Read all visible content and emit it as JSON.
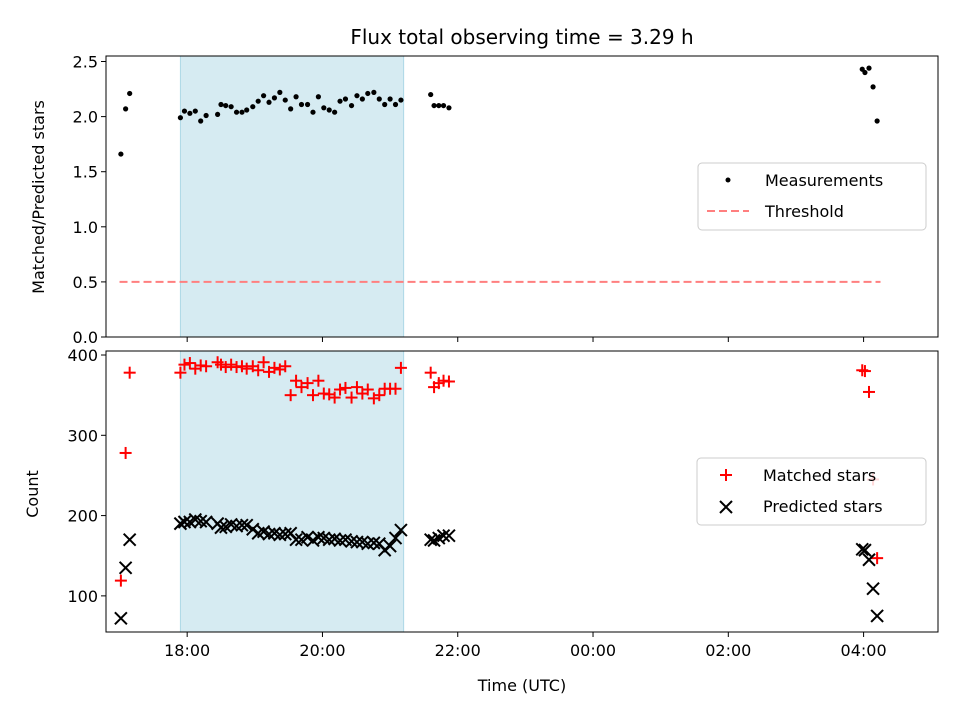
{
  "title": "Flux total observing time = 3.29 h",
  "colors": {
    "threshold": "#ff7f7f",
    "band": "#add8e6",
    "matched": "#ff0000",
    "predicted": "#000000",
    "measurement": "#000000"
  },
  "chart_data": [
    {
      "type": "scatter",
      "ylabel": "Matched/Predicted stars",
      "ylim": [
        0,
        2.55
      ],
      "yticks": [
        0.0,
        0.5,
        1.0,
        1.5,
        2.0,
        2.5
      ],
      "ytick_labels": [
        "0.0",
        "0.5",
        "1.0",
        "1.5",
        "2.0",
        "2.5"
      ],
      "xlim": [
        16.8,
        29.1
      ],
      "xticks": [
        18,
        20,
        22,
        24,
        26,
        28
      ],
      "highlight_band": [
        17.9,
        21.2
      ],
      "legend": {
        "position": "center-right",
        "entries": [
          "Measurements",
          "Threshold"
        ]
      },
      "series": [
        {
          "name": "Measurements",
          "marker": "dot",
          "x": [
            17.02,
            17.09,
            17.15,
            17.9,
            17.96,
            18.04,
            18.12,
            18.2,
            18.28,
            18.45,
            18.5,
            18.57,
            18.65,
            18.73,
            18.81,
            18.88,
            18.97,
            19.05,
            19.13,
            19.21,
            19.29,
            19.37,
            19.45,
            19.53,
            19.61,
            19.69,
            19.78,
            19.86,
            19.94,
            20.02,
            20.1,
            20.18,
            20.26,
            20.34,
            20.43,
            20.51,
            20.59,
            20.67,
            20.76,
            20.84,
            20.92,
            21.0,
            21.08,
            21.16,
            21.6,
            21.65,
            21.72,
            21.79,
            21.87,
            27.98,
            28.02,
            28.08,
            28.14,
            28.2
          ],
          "y": [
            1.66,
            2.07,
            2.21,
            1.99,
            2.05,
            2.03,
            2.05,
            1.96,
            2.01,
            2.02,
            2.11,
            2.1,
            2.09,
            2.04,
            2.04,
            2.06,
            2.09,
            2.14,
            2.19,
            2.13,
            2.17,
            2.22,
            2.15,
            2.07,
            2.18,
            2.11,
            2.11,
            2.04,
            2.18,
            2.08,
            2.06,
            2.04,
            2.14,
            2.16,
            2.1,
            2.19,
            2.16,
            2.21,
            2.22,
            2.16,
            2.11,
            2.16,
            2.11,
            2.15,
            2.2,
            2.1,
            2.1,
            2.1,
            2.08,
            2.43,
            2.4,
            2.44,
            2.27,
            1.96
          ]
        },
        {
          "name": "Threshold",
          "marker": "dashed-line",
          "x": [
            17.0,
            28.25
          ],
          "y": [
            0.5,
            0.5
          ]
        }
      ]
    },
    {
      "type": "scatter",
      "ylabel": "Count",
      "xlabel": "Time (UTC)",
      "ylim": [
        55,
        405
      ],
      "yticks": [
        100,
        200,
        300,
        400
      ],
      "ytick_labels": [
        "100",
        "200",
        "300",
        "400"
      ],
      "xlim": [
        16.8,
        29.1
      ],
      "xticks": [
        18,
        20,
        22,
        24,
        26,
        28
      ],
      "xtick_labels": [
        "18:00",
        "20:00",
        "22:00",
        "00:00",
        "02:00",
        "04:00"
      ],
      "highlight_band": [
        17.9,
        21.2
      ],
      "legend": {
        "position": "center-right",
        "entries": [
          "Matched stars",
          "Predicted stars"
        ]
      },
      "series": [
        {
          "name": "Matched stars",
          "marker": "plus",
          "x": [
            17.02,
            17.09,
            17.15,
            17.9,
            17.96,
            18.04,
            18.12,
            18.2,
            18.28,
            18.45,
            18.5,
            18.57,
            18.65,
            18.73,
            18.81,
            18.88,
            18.97,
            19.05,
            19.13,
            19.21,
            19.29,
            19.37,
            19.45,
            19.53,
            19.61,
            19.69,
            19.78,
            19.86,
            19.94,
            20.02,
            20.1,
            20.18,
            20.26,
            20.34,
            20.43,
            20.51,
            20.59,
            20.67,
            20.76,
            20.84,
            20.92,
            21.0,
            21.08,
            21.16,
            21.6,
            21.65,
            21.72,
            21.79,
            21.87,
            27.98,
            28.02,
            28.08,
            28.14,
            28.2
          ],
          "y": [
            119,
            278,
            378,
            378,
            388,
            390,
            383,
            387,
            386,
            391,
            388,
            385,
            388,
            385,
            386,
            383,
            386,
            381,
            391,
            379,
            384,
            382,
            386,
            350,
            368,
            360,
            365,
            350,
            368,
            352,
            351,
            347,
            357,
            359,
            347,
            360,
            352,
            357,
            346,
            350,
            358,
            358,
            358,
            384,
            378,
            360,
            365,
            368,
            367,
            381,
            380,
            354,
            245,
            147
          ]
        },
        {
          "name": "Predicted stars",
          "marker": "x",
          "x": [
            17.02,
            17.09,
            17.15,
            17.9,
            17.96,
            18.04,
            18.12,
            18.2,
            18.28,
            18.45,
            18.5,
            18.57,
            18.65,
            18.73,
            18.81,
            18.88,
            18.97,
            19.05,
            19.13,
            19.21,
            19.29,
            19.37,
            19.45,
            19.53,
            19.61,
            19.69,
            19.78,
            19.86,
            19.94,
            20.02,
            20.1,
            20.18,
            20.26,
            20.34,
            20.43,
            20.51,
            20.59,
            20.67,
            20.76,
            20.84,
            20.92,
            21.0,
            21.08,
            21.16,
            21.6,
            21.65,
            21.72,
            21.79,
            21.87,
            27.98,
            28.02,
            28.08,
            28.14,
            28.2
          ],
          "y": [
            72,
            135,
            170,
            190,
            192,
            192,
            195,
            193,
            192,
            190,
            185,
            186,
            189,
            187,
            188,
            188,
            183,
            178,
            180,
            177,
            178,
            176,
            177,
            178,
            170,
            170,
            173,
            169,
            173,
            172,
            170,
            171,
            169,
            170,
            168,
            167,
            167,
            165,
            166,
            165,
            157,
            162,
            172,
            182,
            170,
            169,
            172,
            175,
            175,
            158,
            157,
            145,
            109,
            75
          ]
        }
      ]
    }
  ]
}
